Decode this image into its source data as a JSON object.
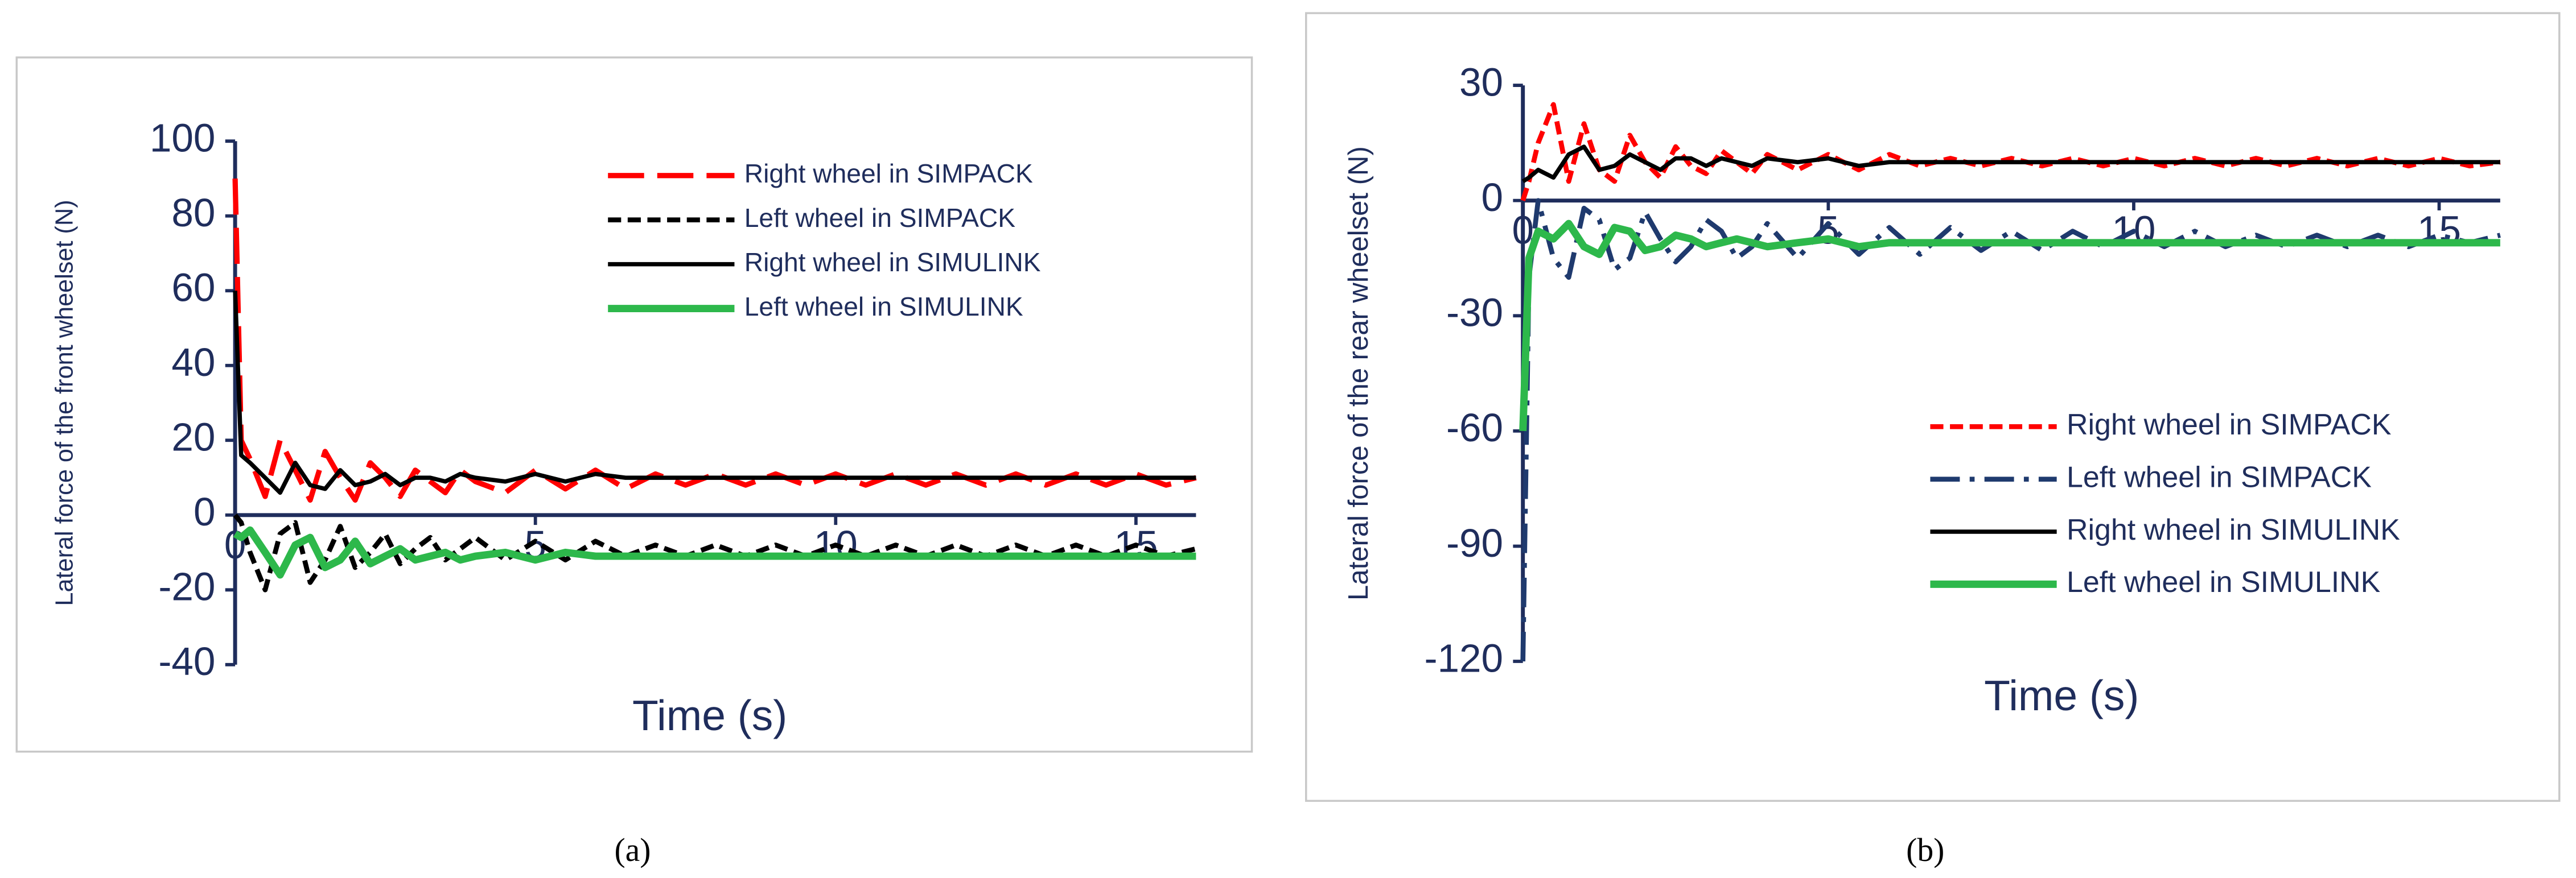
{
  "chart_data": [
    {
      "type": "line",
      "caption": "(a)",
      "xlabel": "Time (s)",
      "ylabel": "Lateral force of the front wheelset (N)",
      "xlim": [
        0,
        16
      ],
      "xticks": [
        0,
        5,
        10,
        15
      ],
      "ylim": [
        -40,
        100
      ],
      "yticks": [
        -40,
        -20,
        0,
        20,
        40,
        60,
        80,
        100
      ],
      "x": [
        0,
        0.1,
        0.25,
        0.5,
        0.75,
        1,
        1.25,
        1.5,
        1.75,
        2,
        2.25,
        2.5,
        2.75,
        3,
        3.25,
        3.5,
        3.75,
        4,
        4.5,
        5,
        5.5,
        6,
        6.5,
        7,
        7.5,
        8,
        8.5,
        9,
        9.5,
        10,
        10.5,
        11,
        11.5,
        12,
        12.5,
        13,
        13.5,
        14,
        14.5,
        15,
        15.5,
        16
      ],
      "series": [
        {
          "name": "Right wheel in SIMPACK",
          "color": "#ff0000",
          "dash": "long",
          "values": [
            90,
            20,
            15,
            5,
            20,
            12,
            4,
            17,
            10,
            4,
            14,
            10,
            5,
            12,
            9,
            6,
            12,
            9,
            6,
            12,
            7,
            12,
            7,
            11,
            8,
            11,
            8,
            11,
            8,
            11,
            8,
            11,
            8,
            11,
            8,
            11,
            8,
            11,
            8,
            11,
            8,
            10
          ]
        },
        {
          "name": "Left wheel in SIMPACK",
          "color": "#000000",
          "dash": "short",
          "values": [
            0,
            -2,
            -10,
            -20,
            -5,
            -2,
            -18,
            -12,
            -3,
            -14,
            -10,
            -5,
            -13,
            -9,
            -6,
            -12,
            -9,
            -6,
            -12,
            -7,
            -12,
            -7,
            -11,
            -8,
            -11,
            -8,
            -11,
            -8,
            -11,
            -8,
            -11,
            -8,
            -11,
            -8,
            -11,
            -8,
            -11,
            -8,
            -11,
            -8,
            -11,
            -9
          ]
        },
        {
          "name": "Right wheel in SIMULINK",
          "color": "#000000",
          "dash": "solid",
          "values": [
            60,
            16,
            14,
            10,
            6,
            14,
            8,
            7,
            12,
            8,
            9,
            11,
            8,
            10,
            10,
            9,
            11,
            10,
            9,
            11,
            9,
            11,
            10,
            10,
            10,
            10,
            10,
            10,
            10,
            10,
            10,
            10,
            10,
            10,
            10,
            10,
            10,
            10,
            10,
            10,
            10,
            10
          ]
        },
        {
          "name": "Left wheel in SIMULINK",
          "color": "#2db84b",
          "dash": "thick",
          "values": [
            -5,
            -6,
            -4,
            -10,
            -16,
            -8,
            -6,
            -14,
            -12,
            -7,
            -13,
            -11,
            -9,
            -12,
            -11,
            -10,
            -12,
            -11,
            -10,
            -12,
            -10,
            -11,
            -11,
            -11,
            -11,
            -11,
            -11,
            -11,
            -11,
            -11,
            -11,
            -11,
            -11,
            -11,
            -11,
            -11,
            -11,
            -11,
            -11,
            -11,
            -11,
            -11
          ]
        }
      ]
    },
    {
      "type": "line",
      "caption": "(b)",
      "xlabel": "Time (s)",
      "ylabel": "Lateral force of the rear wheelset (N)",
      "xlim": [
        0,
        16
      ],
      "xticks": [
        0,
        5,
        10,
        15
      ],
      "ylim": [
        -120,
        30
      ],
      "yticks": [
        -120,
        -90,
        -60,
        -30,
        0,
        30
      ],
      "x": [
        0,
        0.1,
        0.25,
        0.5,
        0.75,
        1,
        1.25,
        1.5,
        1.75,
        2,
        2.25,
        2.5,
        2.75,
        3,
        3.25,
        3.5,
        3.75,
        4,
        4.5,
        5,
        5.5,
        6,
        6.5,
        7,
        7.5,
        8,
        8.5,
        9,
        9.5,
        10,
        10.5,
        11,
        11.5,
        12,
        12.5,
        13,
        13.5,
        14,
        14.5,
        15,
        15.5,
        16
      ],
      "series": [
        {
          "name": "Right wheel in SIMPACK",
          "color": "#ff0000",
          "dash": "short",
          "values": [
            0,
            5,
            15,
            25,
            5,
            20,
            8,
            5,
            17,
            10,
            6,
            14,
            9,
            7,
            13,
            10,
            7,
            12,
            8,
            12,
            8,
            12,
            9,
            11,
            9,
            11,
            9,
            11,
            9,
            11,
            9,
            11,
            9,
            11,
            9,
            11,
            9,
            11,
            9,
            11,
            9,
            10
          ]
        },
        {
          "name": "Left wheel in SIMPACK",
          "color": "#1f3a6e",
          "dash": "dashdot",
          "values": [
            -120,
            -20,
            0,
            -15,
            -20,
            -2,
            -5,
            -18,
            -15,
            -3,
            -10,
            -16,
            -12,
            -5,
            -8,
            -15,
            -12,
            -6,
            -15,
            -6,
            -14,
            -7,
            -14,
            -7,
            -13,
            -8,
            -13,
            -8,
            -12,
            -8,
            -12,
            -8,
            -12,
            -9,
            -12,
            -9,
            -12,
            -9,
            -12,
            -9,
            -11,
            -9
          ]
        },
        {
          "name": "Right wheel in SIMULINK",
          "color": "#000000",
          "dash": "solid",
          "values": [
            5,
            6,
            8,
            6,
            12,
            14,
            8,
            9,
            12,
            10,
            8,
            11,
            11,
            9,
            11,
            10,
            9,
            11,
            10,
            11,
            9,
            10,
            10,
            10,
            10,
            10,
            10,
            10,
            10,
            10,
            10,
            10,
            10,
            10,
            10,
            10,
            10,
            10,
            10,
            10,
            10,
            10
          ]
        },
        {
          "name": "Left wheel in SIMULINK",
          "color": "#2db84b",
          "dash": "thick",
          "values": [
            -60,
            -15,
            -8,
            -10,
            -6,
            -12,
            -14,
            -7,
            -8,
            -13,
            -12,
            -9,
            -10,
            -12,
            -11,
            -10,
            -11,
            -12,
            -11,
            -10,
            -12,
            -11,
            -11,
            -11,
            -11,
            -11,
            -11,
            -11,
            -11,
            -11,
            -11,
            -11,
            -11,
            -11,
            -11,
            -11,
            -11,
            -11,
            -11,
            -11,
            -11,
            -11
          ]
        }
      ]
    }
  ]
}
